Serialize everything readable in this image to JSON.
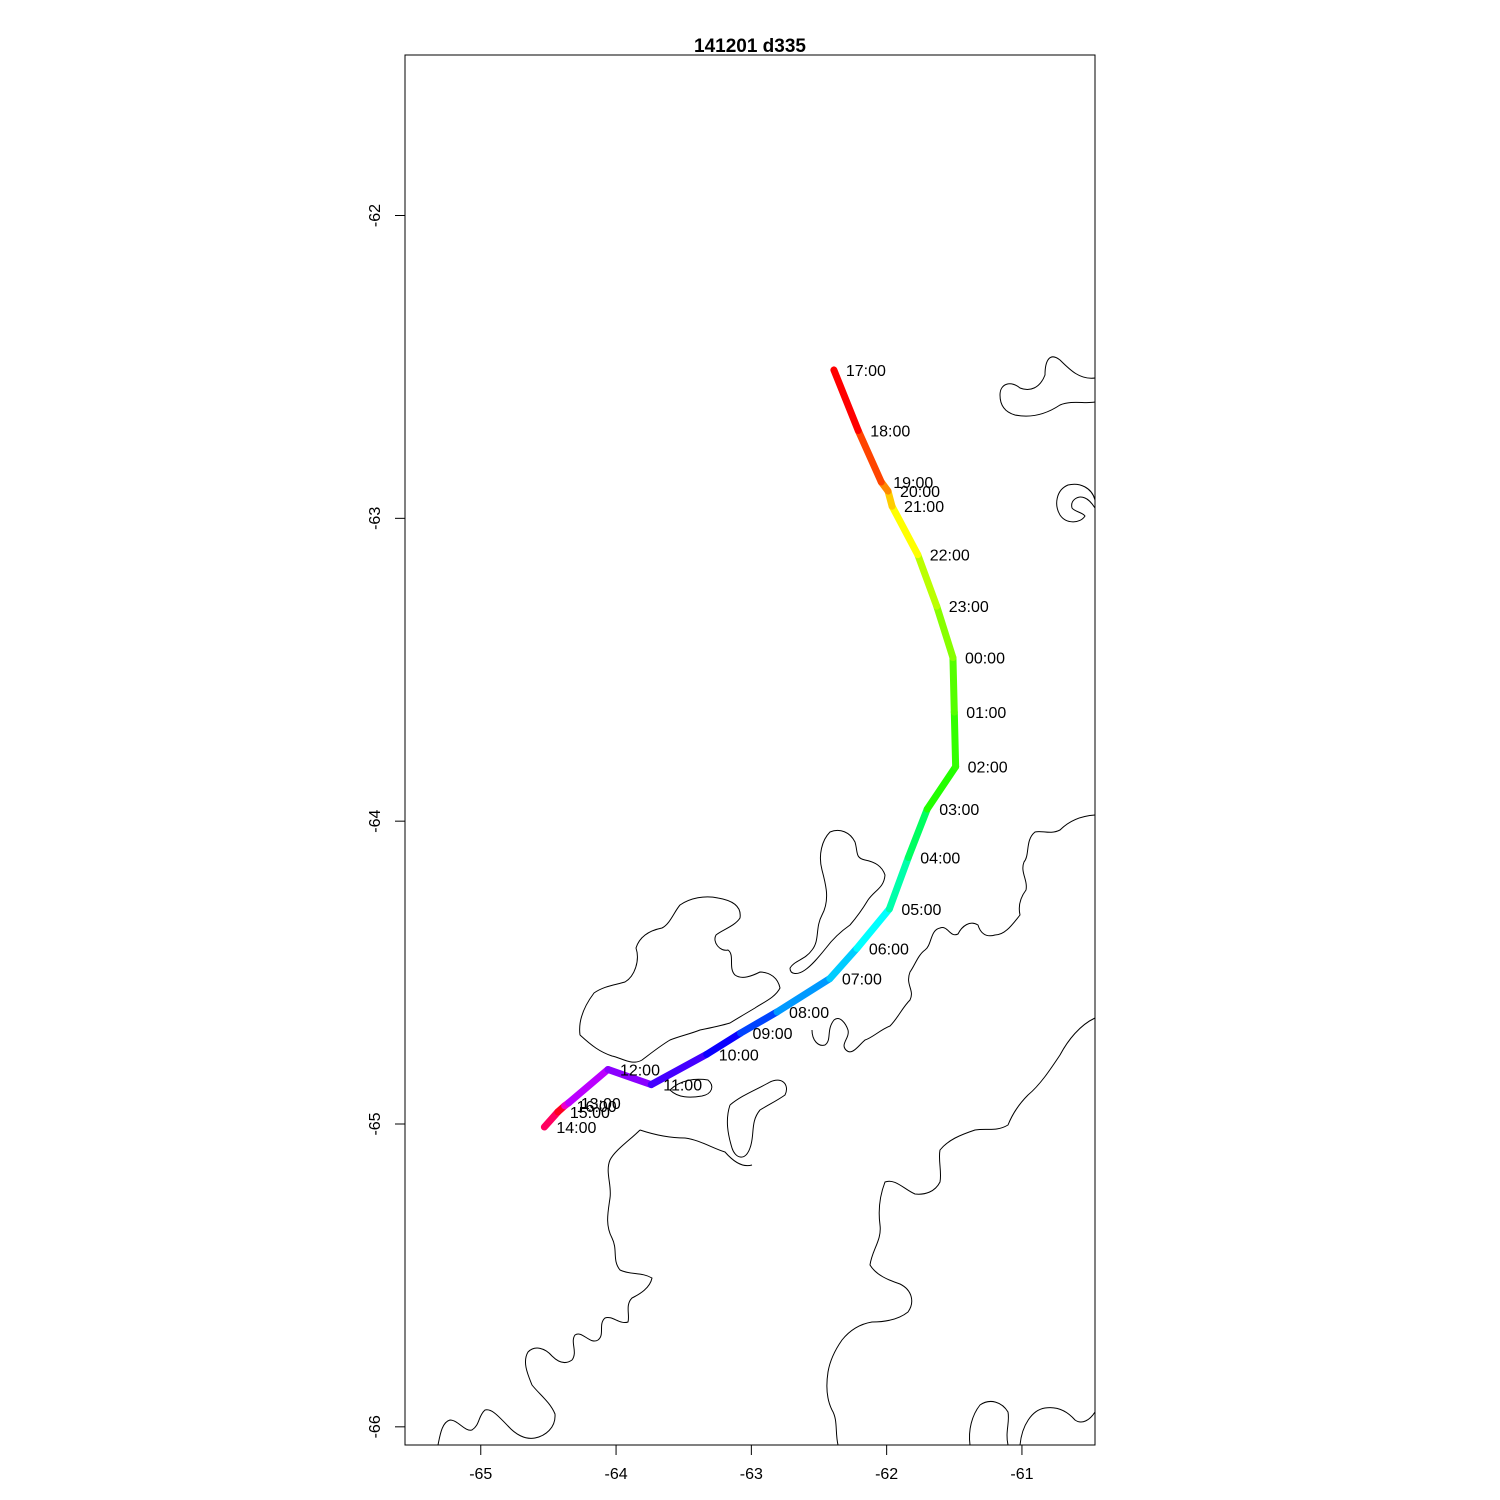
{
  "title": "141201   d335",
  "chart_data": {
    "type": "map-track",
    "title": "141201   d335",
    "xlabel": "",
    "ylabel": "",
    "xlim": [
      -65.56,
      -60.46
    ],
    "ylim": [
      -66.06,
      -61.47
    ],
    "x_ticks": [
      -65,
      -64,
      -63,
      -62,
      -61
    ],
    "y_ticks": [
      -62,
      -63,
      -64,
      -65,
      -66
    ],
    "x_tick_labels": [
      "-65",
      "-64",
      "-63",
      "-62",
      "-61"
    ],
    "y_tick_labels": [
      "-62",
      "-63",
      "-64",
      "-65",
      "-66"
    ],
    "track": [
      {
        "time": "14:00",
        "lon": -64.53,
        "lat": -65.01,
        "color": "#ff00a0"
      },
      {
        "time": "15:00",
        "lon": -64.43,
        "lat": -64.96,
        "color": "#ff0060"
      },
      {
        "time": "16:00",
        "lon": -64.38,
        "lat": -64.94,
        "color": "#ff0020"
      },
      {
        "time": "13:00",
        "lon": -64.35,
        "lat": -64.93,
        "color": "#ee00cc"
      },
      {
        "time": "12:00",
        "lon": -64.06,
        "lat": -64.82,
        "color": "#bb00ff"
      },
      {
        "time": "11:00",
        "lon": -63.74,
        "lat": -64.87,
        "color": "#8a00ff"
      },
      {
        "time": "10:00",
        "lon": -63.33,
        "lat": -64.77,
        "color": "#4400ff"
      },
      {
        "time": "09:00",
        "lon": -63.08,
        "lat": -64.7,
        "color": "#0a00ff"
      },
      {
        "time": "08:00",
        "lon": -62.81,
        "lat": -64.63,
        "color": "#0044ff"
      },
      {
        "time": "07:00",
        "lon": -62.42,
        "lat": -64.52,
        "color": "#0099ff"
      },
      {
        "time": "06:00",
        "lon": -62.22,
        "lat": -64.42,
        "color": "#00ccff"
      },
      {
        "time": "05:00",
        "lon": -61.98,
        "lat": -64.29,
        "color": "#00ffff"
      },
      {
        "time": "04:00",
        "lon": -61.84,
        "lat": -64.12,
        "color": "#00ffaa"
      },
      {
        "time": "03:00",
        "lon": -61.7,
        "lat": -63.96,
        "color": "#00ff60"
      },
      {
        "time": "02:00",
        "lon": -61.49,
        "lat": -63.82,
        "color": "#22ff00"
      },
      {
        "time": "01:00",
        "lon": -61.5,
        "lat": -63.64,
        "color": "#33ff00"
      },
      {
        "time": "00:00",
        "lon": -61.51,
        "lat": -63.46,
        "color": "#55ff00"
      },
      {
        "time": "23:00",
        "lon": -61.63,
        "lat": -63.29,
        "color": "#88ff00"
      },
      {
        "time": "22:00",
        "lon": -61.77,
        "lat": -63.12,
        "color": "#bbff00"
      },
      {
        "time": "21:00",
        "lon": -61.96,
        "lat": -62.96,
        "color": "#ffff00"
      },
      {
        "time": "20:00",
        "lon": -61.99,
        "lat": -62.91,
        "color": "#ffcc00"
      },
      {
        "time": "19:00",
        "lon": -62.04,
        "lat": -62.88,
        "color": "#ff8800"
      },
      {
        "time": "18:00",
        "lon": -62.21,
        "lat": -62.71,
        "color": "#ff4400"
      },
      {
        "time": "17:00",
        "lon": -62.39,
        "lat": -62.51,
        "color": "#ff0000"
      }
    ]
  }
}
